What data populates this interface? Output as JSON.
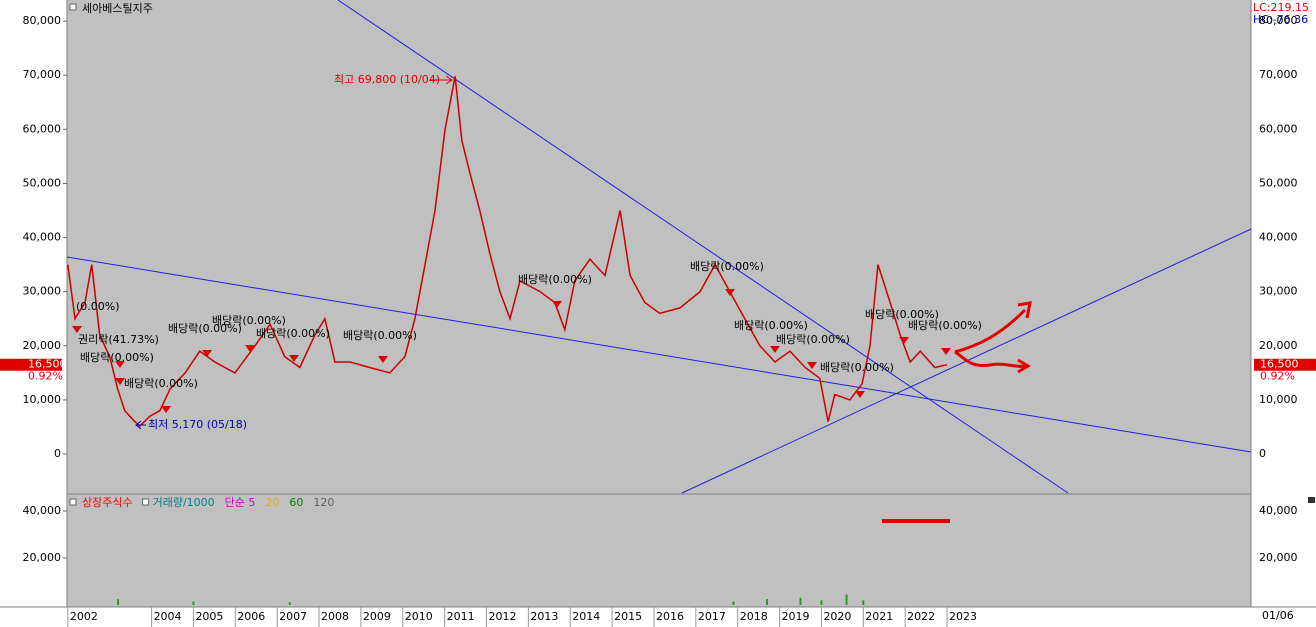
{
  "chart_data": [
    {
      "type": "line",
      "title": "세아베스틸지주",
      "corner_labels": [
        "LC:219.15",
        "HC:-76.36"
      ],
      "xlim": [
        2001.98,
        2030.26
      ],
      "xticks": [
        {
          "value": 2002,
          "label": "2002"
        },
        {
          "value": 2004,
          "label": "2004"
        },
        {
          "value": 2005,
          "label": "2005"
        },
        {
          "value": 2006,
          "label": "2006"
        },
        {
          "value": 2007,
          "label": "2007"
        },
        {
          "value": 2008,
          "label": "2008"
        },
        {
          "value": 2009,
          "label": "2009"
        },
        {
          "value": 2010,
          "label": "2010"
        },
        {
          "value": 2011,
          "label": "2011"
        },
        {
          "value": 2012,
          "label": "2012"
        },
        {
          "value": 2013,
          "label": "2013"
        },
        {
          "value": 2014,
          "label": "2014"
        },
        {
          "value": 2015,
          "label": "2015"
        },
        {
          "value": 2016,
          "label": "2016"
        },
        {
          "value": 2017,
          "label": "2017"
        },
        {
          "value": 2018,
          "label": "2018"
        },
        {
          "value": 2019,
          "label": "2019"
        },
        {
          "value": 2020,
          "label": "2020"
        },
        {
          "value": 2021,
          "label": "2021"
        },
        {
          "value": 2022,
          "label": "2022"
        },
        {
          "value": 2023,
          "label": "2023"
        }
      ],
      "x_end_label": "01/06",
      "ylim": [
        -7200,
        83900
      ],
      "yticks": [
        0,
        {
          "value": 10000,
          "label": "10,000"
        },
        {
          "value": 20000,
          "label": "20,000"
        },
        {
          "value": 30000,
          "label": "30,000"
        },
        {
          "value": 40000,
          "label": "40,000"
        },
        {
          "value": 50000,
          "label": "50,000"
        },
        {
          "value": 60000,
          "label": "60,000"
        },
        {
          "value": 70000,
          "label": "70,000"
        },
        {
          "value": 80000,
          "label": "80,000"
        }
      ],
      "series": [
        {
          "color": "#cc0000",
          "x": [
            2002.0,
            2002.17,
            2002.41,
            2002.57,
            2002.76,
            2003.0,
            2003.19,
            2003.36,
            2003.6,
            2003.72,
            2003.96,
            2004.2,
            2004.44,
            2004.8,
            2005.15,
            2005.51,
            2005.99,
            2006.47,
            2006.83,
            2007.18,
            2007.54,
            2007.9,
            2008.14,
            2008.38,
            2008.74,
            2009.21,
            2009.69,
            2010.05,
            2010.29,
            2010.53,
            2010.77,
            2011.01,
            2011.25,
            2011.41,
            2011.6,
            2011.84,
            2012.08,
            2012.32,
            2012.56,
            2012.8,
            2013.28,
            2013.63,
            2013.87,
            2014.11,
            2014.47,
            2014.83,
            2015.19,
            2015.43,
            2015.78,
            2016.14,
            2016.62,
            2017.1,
            2017.46,
            2017.81,
            2018.17,
            2018.53,
            2018.89,
            2019.25,
            2019.61,
            2019.96,
            2020.16,
            2020.32,
            2020.68,
            2020.97,
            2021.16,
            2021.35,
            2021.64,
            2021.88,
            2022.12,
            2022.36,
            2022.71,
            2023.0
          ],
          "values": [
            35000,
            25000,
            28000,
            35000,
            22000,
            18000,
            12000,
            8000,
            6000,
            5170,
            7000,
            8000,
            12000,
            15000,
            19000,
            17000,
            15000,
            20000,
            24000,
            18000,
            16000,
            22000,
            25000,
            17000,
            17000,
            16000,
            15000,
            18000,
            25000,
            35000,
            45000,
            60000,
            69800,
            58000,
            52000,
            45000,
            37000,
            30000,
            25000,
            32000,
            30000,
            28000,
            23000,
            32000,
            36000,
            33000,
            45000,
            33000,
            28000,
            26000,
            27000,
            30000,
            35000,
            30000,
            25000,
            20000,
            17000,
            19000,
            16000,
            14000,
            6000,
            11000,
            10000,
            13000,
            20000,
            35000,
            28000,
            22000,
            17000,
            19000,
            16000,
            16500
          ]
        }
      ],
      "last_price": {
        "value": 16500,
        "label": "16,500"
      },
      "change_label": "0.92%",
      "annotations": [
        "최고 69,800 (10/04)",
        "최저 5,170 (05/18)",
        "(0.00%)",
        "권리락(41.73%)",
        "배당락(0.00%)",
        "배당락(0.00%)",
        "배당락(0.00%)",
        "배당락(0.00%)",
        "배당락(0.00%)",
        "배당락(0.00%)",
        "배당락(0.00%)",
        "배당락(0.00%)",
        "배당락(0.00%)",
        "배당락(0.00%)",
        "배당락(0.00%)",
        "배당락(0.00%)",
        "배당락(0.00%)"
      ]
    },
    {
      "type": "bar",
      "legend_items": [
        {
          "name": "상장주식수",
          "color": "#ff0000"
        },
        {
          "name": "거래량/1000",
          "color": "#008080"
        },
        {
          "name": "단순 5",
          "color": "#cc00cc"
        },
        {
          "name": "20",
          "color": "#e0b000"
        },
        {
          "name": "60",
          "color": "#008000"
        },
        {
          "name": "120",
          "color": "#606060"
        }
      ],
      "ylim": [
        0,
        46800
      ],
      "yticks": [
        {
          "value": 20000,
          "label": "20,000"
        },
        {
          "value": 40000,
          "label": "40,000"
        }
      ],
      "x": [
        2003.2,
        2005.0,
        2007.3,
        2017.9,
        2018.7,
        2019.5,
        2020.0,
        2020.6,
        2021.0
      ],
      "values": [
        2500,
        1500,
        1200,
        1500,
        2500,
        3000,
        2000,
        4500,
        2000
      ]
    }
  ]
}
